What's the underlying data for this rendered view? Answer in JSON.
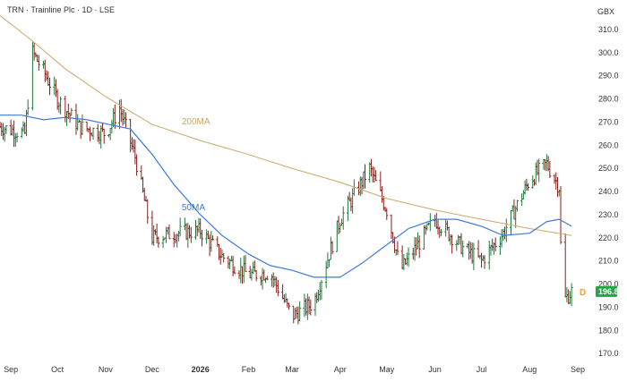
{
  "header": {
    "symbol_line": "TRN · Trainline Plc · 1D · LSE",
    "currency": "GBX"
  },
  "chart_data": {
    "type": "line",
    "title": "",
    "ylim": [
      167,
      315
    ],
    "xlim": [
      "2025-08-25",
      "2026-09-05"
    ],
    "y_ticks": [
      170,
      180,
      190,
      200,
      210,
      220,
      230,
      240,
      250,
      260,
      270,
      280,
      290,
      300,
      310
    ],
    "x_ticks": [
      {
        "date": "2025-09-01",
        "label": "Sep"
      },
      {
        "date": "2025-10-01",
        "label": "Oct"
      },
      {
        "date": "2025-11-01",
        "label": "Nov"
      },
      {
        "date": "2025-12-01",
        "label": "Dec"
      },
      {
        "date": "2026-01-01",
        "label": "2026"
      },
      {
        "date": "2026-02-01",
        "label": "Feb"
      },
      {
        "date": "2026-03-01",
        "label": "Mar"
      },
      {
        "date": "2026-04-01",
        "label": "Apr"
      },
      {
        "date": "2026-05-01",
        "label": "May"
      },
      {
        "date": "2026-06-01",
        "label": "Jun"
      },
      {
        "date": "2026-07-01",
        "label": "Jul"
      },
      {
        "date": "2026-08-01",
        "label": "Aug"
      },
      {
        "date": "2026-09-01",
        "label": "Sep"
      }
    ],
    "last_price": {
      "value": 196.8,
      "label": "196.8",
      "color": "#26a641"
    },
    "dividend_marker": {
      "label": "D",
      "color": "#f0a030"
    },
    "grid": false,
    "colors": {
      "up": "#1f7a3a",
      "down": "#8c1d1d",
      "ma50": "#3f7bd6",
      "ma200": "#c9a86a"
    },
    "series": [
      {
        "name": "50MA",
        "label_date": "2025-12-20",
        "label_value": 232,
        "points": [
          [
            "2025-08-25",
            273
          ],
          [
            "2025-09-08",
            273
          ],
          [
            "2025-09-22",
            271
          ],
          [
            "2025-10-06",
            272
          ],
          [
            "2025-10-20",
            271
          ],
          [
            "2025-11-03",
            269
          ],
          [
            "2025-11-17",
            267
          ],
          [
            "2025-12-01",
            256
          ],
          [
            "2025-12-15",
            243
          ],
          [
            "2026-01-01",
            230
          ],
          [
            "2026-01-15",
            221
          ],
          [
            "2026-02-01",
            213
          ],
          [
            "2026-02-15",
            208
          ],
          [
            "2026-03-01",
            206
          ],
          [
            "2026-03-15",
            203
          ],
          [
            "2026-04-01",
            203
          ],
          [
            "2026-04-15",
            209
          ],
          [
            "2026-05-01",
            217
          ],
          [
            "2026-05-15",
            224
          ],
          [
            "2026-06-01",
            228
          ],
          [
            "2026-06-15",
            228
          ],
          [
            "2026-07-01",
            225
          ],
          [
            "2026-07-15",
            221
          ],
          [
            "2026-08-01",
            222
          ],
          [
            "2026-08-12",
            227
          ],
          [
            "2026-08-20",
            228
          ],
          [
            "2026-08-28",
            225
          ]
        ]
      },
      {
        "name": "200MA",
        "label_date": "2025-12-20",
        "label_value": 269,
        "points": [
          [
            "2025-08-25",
            316
          ],
          [
            "2025-09-15",
            305
          ],
          [
            "2025-10-06",
            293
          ],
          [
            "2025-11-01",
            281
          ],
          [
            "2025-12-01",
            269
          ],
          [
            "2026-01-01",
            262
          ],
          [
            "2026-02-01",
            256
          ],
          [
            "2026-03-01",
            250
          ],
          [
            "2026-04-01",
            244
          ],
          [
            "2026-05-01",
            237
          ],
          [
            "2026-06-01",
            232
          ],
          [
            "2026-07-01",
            228
          ],
          [
            "2026-08-01",
            224
          ],
          [
            "2026-08-28",
            221
          ]
        ]
      },
      {
        "name": "TRN",
        "kind": "ohlc",
        "anchors": [
          [
            "2025-08-25",
            268
          ],
          [
            "2025-09-10",
            265
          ],
          [
            "2025-09-15",
            300
          ],
          [
            "2025-09-22",
            292
          ],
          [
            "2025-10-01",
            280
          ],
          [
            "2025-10-15",
            268
          ],
          [
            "2025-11-01",
            265
          ],
          [
            "2025-11-10",
            276
          ],
          [
            "2025-11-20",
            255
          ],
          [
            "2025-12-01",
            220
          ],
          [
            "2025-12-15",
            222
          ],
          [
            "2026-01-01",
            223
          ],
          [
            "2026-01-15",
            212
          ],
          [
            "2026-02-01",
            204
          ],
          [
            "2026-02-15",
            205
          ],
          [
            "2026-03-01",
            186
          ],
          [
            "2026-03-15",
            192
          ],
          [
            "2026-04-01",
            228
          ],
          [
            "2026-04-20",
            250
          ],
          [
            "2026-05-01",
            232
          ],
          [
            "2026-05-10",
            206
          ],
          [
            "2026-06-01",
            228
          ],
          [
            "2026-06-20",
            215
          ],
          [
            "2026-07-01",
            210
          ],
          [
            "2026-07-15",
            222
          ],
          [
            "2026-08-01",
            245
          ],
          [
            "2026-08-12",
            252
          ],
          [
            "2026-08-20",
            242
          ],
          [
            "2026-08-22",
            192
          ],
          [
            "2026-08-28",
            196.8
          ]
        ]
      }
    ]
  }
}
